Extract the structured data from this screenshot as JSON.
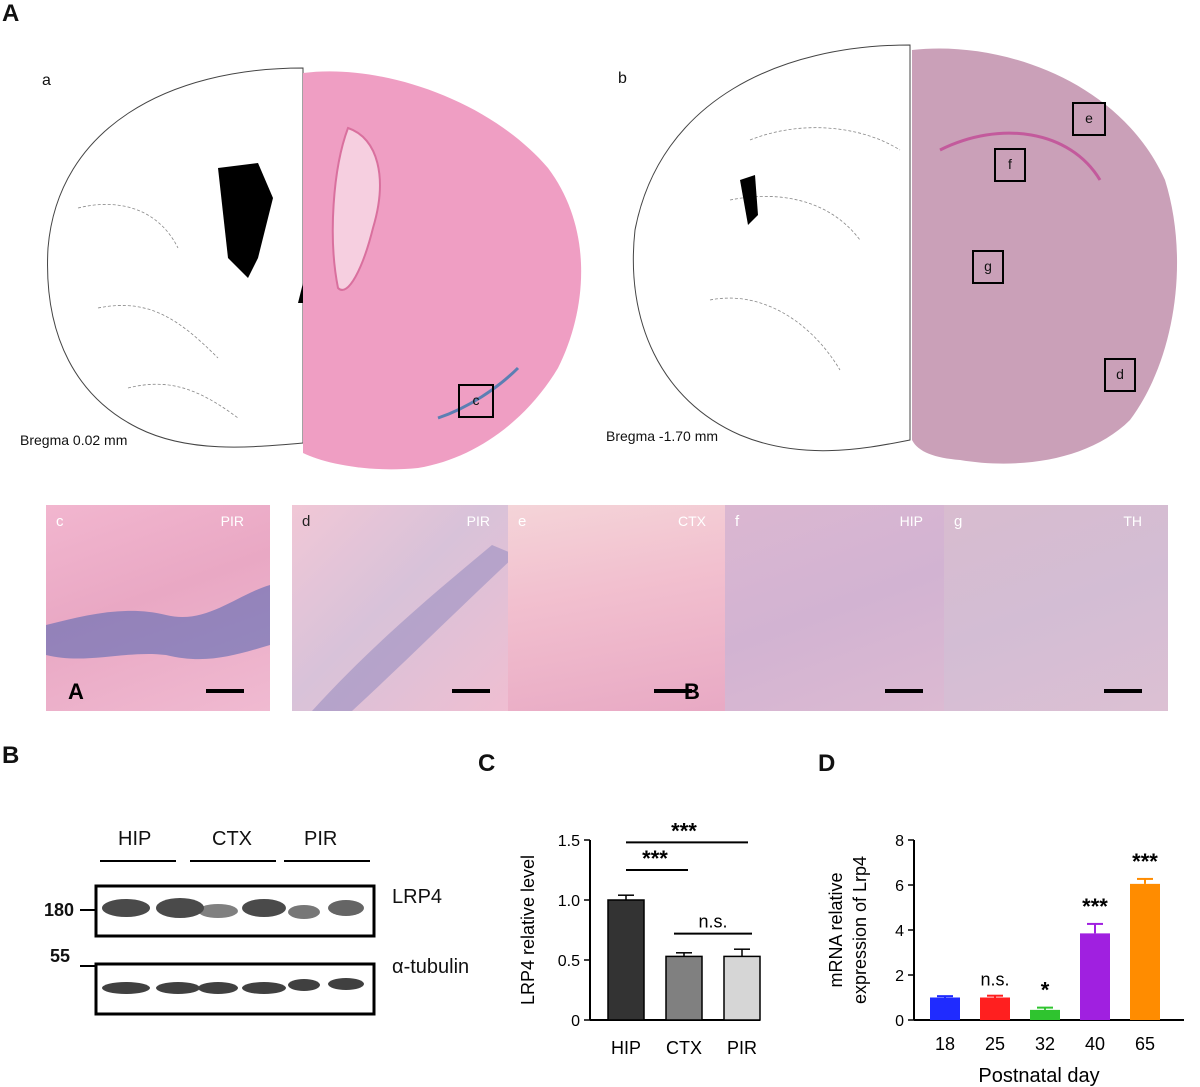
{
  "panels": {
    "A": "A",
    "B": "B",
    "C": "C",
    "D": "D"
  },
  "atlas": {
    "a": {
      "label": "a",
      "bregma": "Bregma 0.02 mm"
    },
    "b": {
      "label": "b",
      "bregma": "Bregma -1.70 mm"
    },
    "markers": [
      "c",
      "d",
      "e",
      "f",
      "g"
    ]
  },
  "tiles": [
    {
      "id": "c",
      "region": "PIR",
      "inlay": "A"
    },
    {
      "id": "d",
      "region": "PIR",
      "inlay": ""
    },
    {
      "id": "e",
      "region": "CTX",
      "inlay": "B"
    },
    {
      "id": "f",
      "region": "HIP",
      "inlay": ""
    },
    {
      "id": "g",
      "region": "TH",
      "inlay": ""
    }
  ],
  "western": {
    "groups": [
      "HIP",
      "CTX",
      "PIR"
    ],
    "bands": [
      {
        "name": "LRP4",
        "mw": "180"
      },
      {
        "name": "α-tubulin",
        "mw": "55"
      }
    ]
  },
  "colors": {
    "hip_bar": "#333333",
    "ctx_bar": "#808080",
    "pir_bar": "#d6d6d6",
    "d18": "#1f2bff",
    "d25": "#ff1f1f",
    "d32": "#2fc42f",
    "d40": "#a020e0",
    "d65": "#ff8c00"
  },
  "chart_data": [
    {
      "type": "bar",
      "panel": "C",
      "categories": [
        "HIP",
        "CTX",
        "PIR"
      ],
      "values": [
        1.0,
        0.53,
        0.53
      ],
      "errors": [
        0.04,
        0.03,
        0.06
      ],
      "ylabel": "LRP4  relative level",
      "ylim": [
        0,
        1.5
      ],
      "yticks": [
        "0",
        "0.5",
        "1.0",
        "1.5"
      ],
      "annotations": [
        "***",
        "***",
        "n.s."
      ]
    },
    {
      "type": "bar",
      "panel": "D",
      "categories": [
        "18",
        "25",
        "32",
        "40",
        "65"
      ],
      "values": [
        1.0,
        1.0,
        0.45,
        3.85,
        6.05
      ],
      "errors": [
        0.06,
        0.08,
        0.1,
        0.42,
        0.22
      ],
      "xlabel": "Postnatal day",
      "ylabel_line1": "mRNA relative",
      "ylabel_line2": "expression of Lrp4",
      "ylim": [
        0,
        8
      ],
      "yticks": [
        "0",
        "2",
        "4",
        "6",
        "8"
      ],
      "annotations": [
        "",
        "n.s.",
        "*",
        "***",
        "***"
      ]
    }
  ]
}
